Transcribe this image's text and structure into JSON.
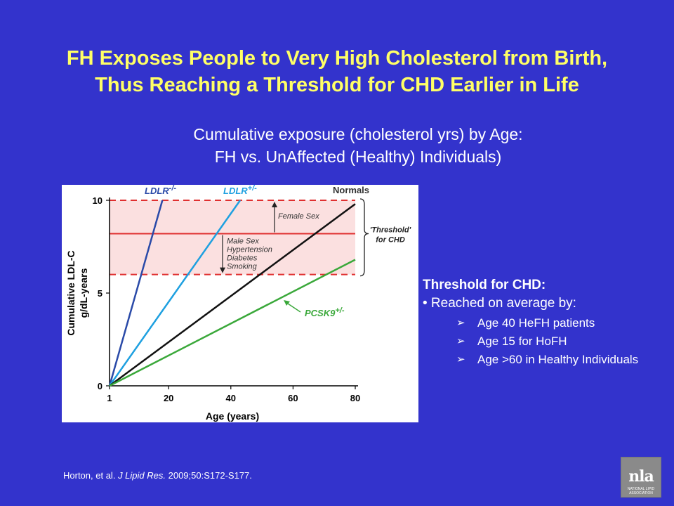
{
  "slide": {
    "title_line1": "FH Exposes People to Very High Cholesterol from Birth,",
    "title_line2": "Thus Reaching a Threshold for CHD Earlier in Life",
    "subtitle_line1": "Cumulative exposure (cholesterol yrs) by Age:",
    "subtitle_line2": "FH vs. UnAffected (Healthy) Individuals)"
  },
  "threshold_box": {
    "heading": "Threshold for CHD:",
    "intro": "• Reached on average by:",
    "bullet_glyph": "➢",
    "items": [
      "Age 40 HeFH patients",
      "Age 15 for HoFH",
      "Age >60 in Healthy Individuals"
    ]
  },
  "citation": {
    "authors": "Horton, et al.",
    "journal": "J Lipid Res.",
    "details": "2009;50:S172-S177."
  },
  "logo": {
    "letters": "nla",
    "caption": "NATIONAL LIPID ASSOCIATION"
  },
  "colors": {
    "background": "#3333cc",
    "title": "#ffff66",
    "ldlr_hom": "#2a4aa8",
    "ldlr_het": "#1ea0e0",
    "normals": "#111111",
    "pcsk9": "#3aa83a",
    "threshold": "#e03030",
    "band": "#fbe0e0"
  },
  "chart_data": {
    "type": "line",
    "xlabel": "Age (years)",
    "ylabel_line1": "Cumulative LDL-C",
    "ylabel_line2": "g/dL-years",
    "x_ticks": [
      1,
      20,
      40,
      60,
      80
    ],
    "y_ticks": [
      0,
      5,
      10
    ],
    "xlim": [
      1,
      80
    ],
    "ylim": [
      0,
      10
    ],
    "grid": false,
    "series": [
      {
        "name": "LDLR-/-",
        "base": "LDLR",
        "sup": "-/-",
        "color": "#2a4aa8",
        "points": [
          [
            1,
            0
          ],
          [
            18,
            10
          ]
        ]
      },
      {
        "name": "LDLR+/-",
        "base": "LDLR",
        "sup": "+/-",
        "color": "#1ea0e0",
        "points": [
          [
            1,
            0
          ],
          [
            43,
            10
          ]
        ]
      },
      {
        "name": "Normals",
        "base": "Normals",
        "sup": "",
        "color": "#111111",
        "points": [
          [
            1,
            0
          ],
          [
            80,
            9.8
          ]
        ]
      },
      {
        "name": "PCSK9+/-",
        "base": "PCSK9",
        "sup": "+/-",
        "color": "#3aa83a",
        "points": [
          [
            1,
            0
          ],
          [
            80,
            6.8
          ]
        ]
      }
    ],
    "threshold": {
      "band": [
        6,
        10
      ],
      "line": 8.2,
      "label_line1": "'Threshold'",
      "label_line2": "for CHD"
    },
    "annotations": {
      "female_sex": "Female Sex",
      "risk_factors": [
        "Male Sex",
        "Hypertension",
        "Diabetes",
        "Smoking"
      ]
    }
  }
}
